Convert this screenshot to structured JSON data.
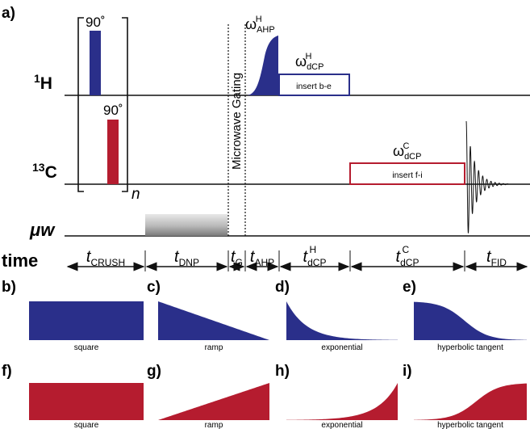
{
  "panel_a": {
    "letter": "a)",
    "h_channel": "1H",
    "c_channel": "13C",
    "mw_channel": "μw",
    "pulse_90_h": "90˚",
    "pulse_90_c": "90˚",
    "loop_count": "n",
    "gating_label": "Microwave Gating",
    "omega_ahp": "ωAHP H",
    "omega_dcp_h": "ωdCP H",
    "omega_dcp_c": "ωdCP C",
    "insert_h": "insert b-e",
    "insert_c": "insert f-i",
    "time_label": "time",
    "time_segments": [
      "tCRUSH",
      "tDNP",
      "tG",
      "tAHP",
      "tdCP H",
      "tdCP C",
      "tFID"
    ]
  },
  "shape_panels": [
    {
      "letter": "b)",
      "caption": "square",
      "color": "#2a2f8a"
    },
    {
      "letter": "c)",
      "caption": "ramp",
      "color": "#2a2f8a"
    },
    {
      "letter": "d)",
      "caption": "exponential",
      "color": "#2a2f8a"
    },
    {
      "letter": "e)",
      "caption": "hyperbolic tangent",
      "color": "#2a2f8a"
    },
    {
      "letter": "f)",
      "caption": "square",
      "color": "#b51c2f"
    },
    {
      "letter": "g)",
      "caption": "ramp",
      "color": "#b51c2f"
    },
    {
      "letter": "h)",
      "caption": "exponential",
      "color": "#b51c2f"
    },
    {
      "letter": "i)",
      "caption": "hyperbolic tangent",
      "color": "#b51c2f"
    }
  ],
  "colors": {
    "proton": "#2a2f8a",
    "carbon": "#b51c2f",
    "line": "#111111"
  }
}
